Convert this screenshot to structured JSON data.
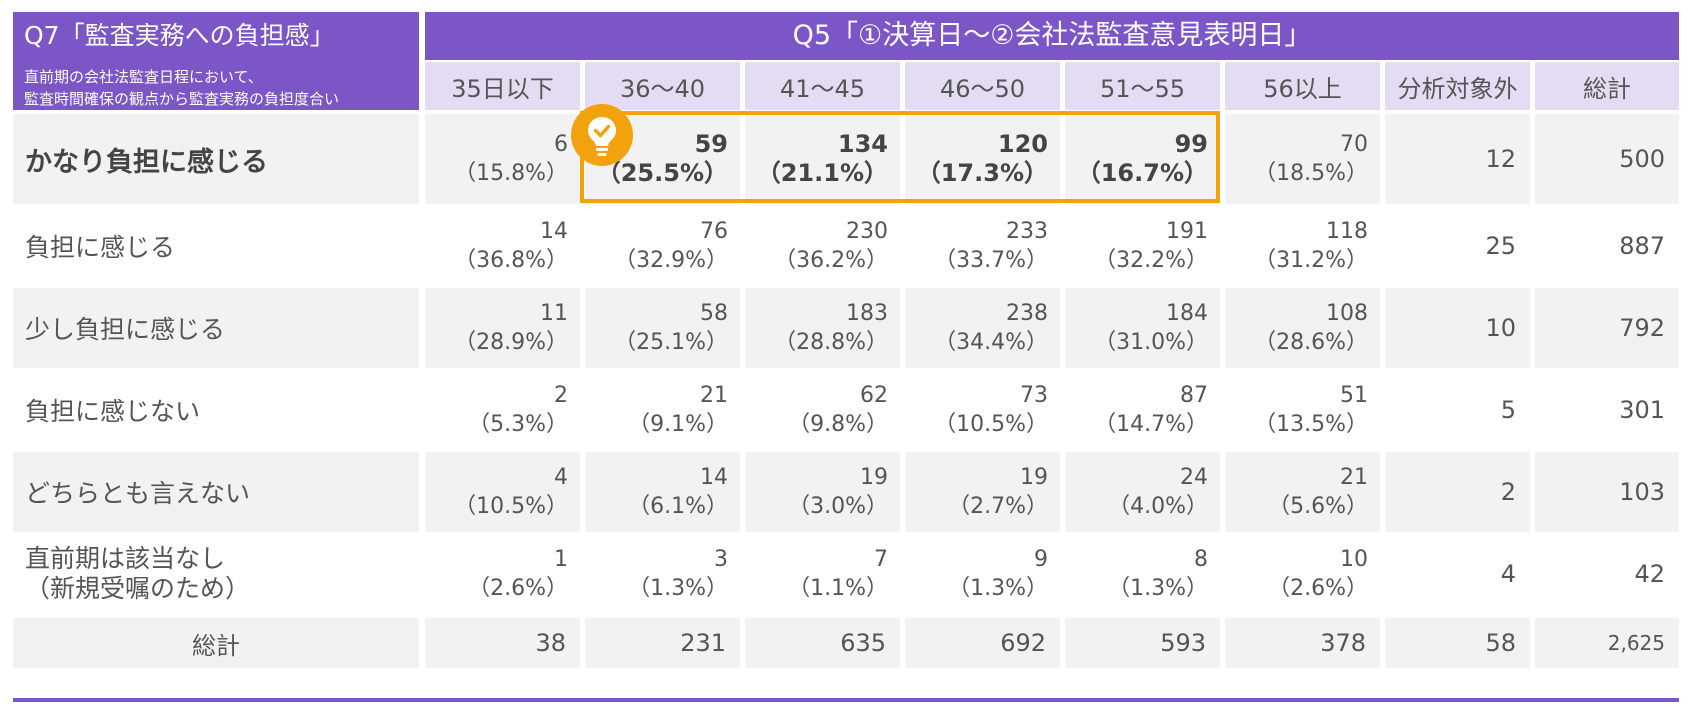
{
  "q7": {
    "title": "Q7「監査実務への負担感」",
    "subtitle_1": "直前期の会社法監査日程において、",
    "subtitle_2": "監査時間確保の観点から監査実務の負担度合い"
  },
  "q5": {
    "title": "Q5「①決算日～②会社法監査意見表明日」"
  },
  "chart_data": {
    "type": "table",
    "columns": [
      "35日以下",
      "36～40",
      "41～45",
      "46～50",
      "51～55",
      "56以上",
      "分析対象外",
      "総計"
    ],
    "rows": [
      {
        "label": "かなり負担に感じる",
        "counts": [
          "6",
          "59",
          "134",
          "120",
          "99",
          "70"
        ],
        "pcts": [
          "（15.8%）",
          "（25.5%）",
          "（21.1%）",
          "（17.3%）",
          "（16.7%）",
          "（18.5%）"
        ],
        "excluded": "12",
        "total": "500"
      },
      {
        "label": "負担に感じる",
        "counts": [
          "14",
          "76",
          "230",
          "233",
          "191",
          "118"
        ],
        "pcts": [
          "（36.8%）",
          "（32.9%）",
          "（36.2%）",
          "（33.7%）",
          "（32.2%）",
          "（31.2%）"
        ],
        "excluded": "25",
        "total": "887"
      },
      {
        "label": "少し負担に感じる",
        "counts": [
          "11",
          "58",
          "183",
          "238",
          "184",
          "108"
        ],
        "pcts": [
          "（28.9%）",
          "（25.1%）",
          "（28.8%）",
          "（34.4%）",
          "（31.0%）",
          "（28.6%）"
        ],
        "excluded": "10",
        "total": "792"
      },
      {
        "label": "負担に感じない",
        "counts": [
          "2",
          "21",
          "62",
          "73",
          "87",
          "51"
        ],
        "pcts": [
          "（5.3%）",
          "（9.1%）",
          "（9.8%）",
          "（10.5%）",
          "（14.7%）",
          "（13.5%）"
        ],
        "excluded": "5",
        "total": "301"
      },
      {
        "label": "どちらとも言えない",
        "counts": [
          "4",
          "14",
          "19",
          "19",
          "24",
          "21"
        ],
        "pcts": [
          "（10.5%）",
          "（6.1%）",
          "（3.0%）",
          "（2.7%）",
          "（4.0%）",
          "（5.6%）"
        ],
        "excluded": "2",
        "total": "103"
      },
      {
        "label_1": "直前期は該当なし",
        "label_2": "（新規受嘱のため）",
        "counts": [
          "1",
          "3",
          "7",
          "9",
          "8",
          "10"
        ],
        "pcts": [
          "（2.6%）",
          "（1.3%）",
          "（1.1%）",
          "（1.3%）",
          "（1.3%）",
          "（2.6%）"
        ],
        "excluded": "4",
        "total": "42"
      }
    ],
    "totals": {
      "label": "総計",
      "values": [
        "38",
        "231",
        "635",
        "692",
        "593",
        "378",
        "58",
        "2,625"
      ]
    },
    "highlight": {
      "row": "かなり負担に感じる",
      "columns": [
        "36～40",
        "41～45",
        "46～50",
        "51～55"
      ],
      "color": "#f2a20c"
    }
  },
  "colors": {
    "header": "#7c56c7",
    "subheader": "#e4dcf3",
    "cell": "#f2f2f2",
    "highlight": "#f2a20c"
  },
  "icons": {
    "callout": "lightbulb-check-icon"
  }
}
